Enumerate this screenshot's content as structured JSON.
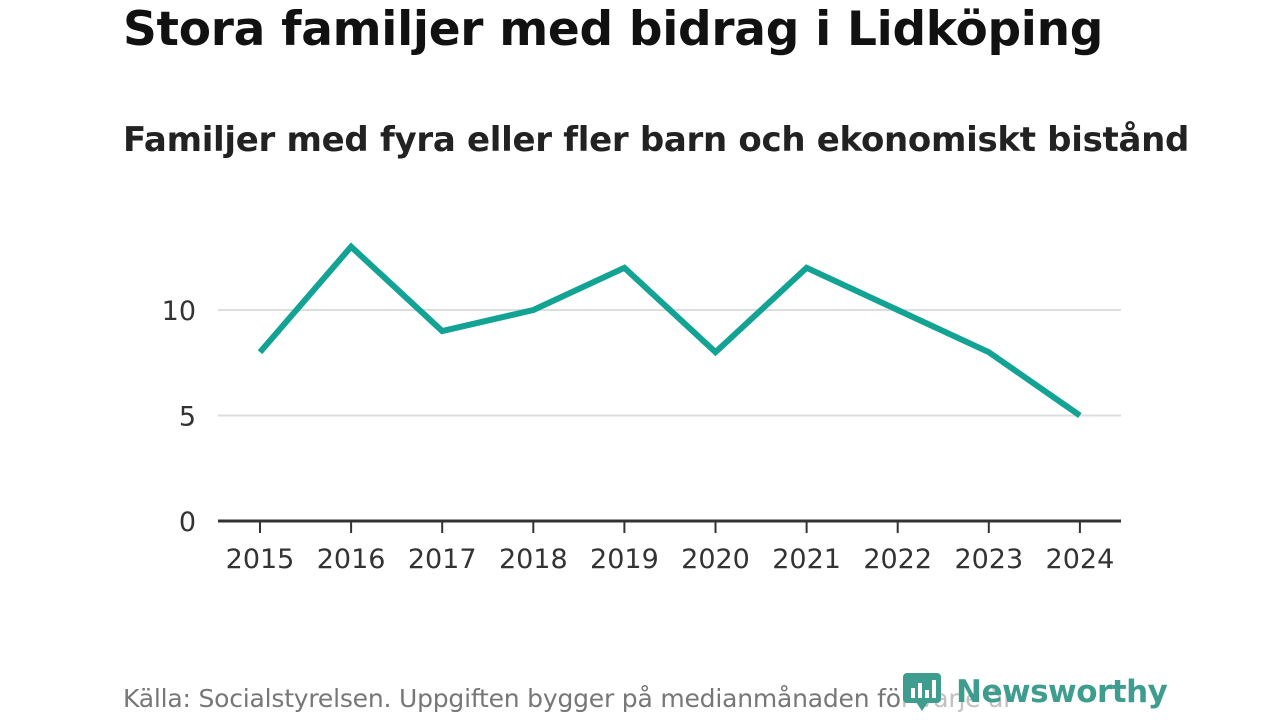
{
  "title": "Stora familjer med bidrag i Lidköping",
  "subtitle": "Familjer med fyra eller fler barn och ekonomiskt bistånd",
  "source": "Källa: Socialstyrelsen. Uppgiften bygger på medianmånaden för varje år",
  "brand": {
    "name": "Newsworthy",
    "logo_icon": "newsworthy-logo-icon",
    "color": "#3e9d8f"
  },
  "colors": {
    "line": "#13a394",
    "grid": "#dddddd",
    "axis": "#333333",
    "tick_text": "#333333"
  },
  "chart_data": {
    "type": "line",
    "title": "Stora familjer med bidrag i Lidköping",
    "subtitle": "Familjer med fyra eller fler barn och ekonomiskt bistånd",
    "xlabel": "",
    "ylabel": "",
    "categories": [
      "2015",
      "2016",
      "2017",
      "2018",
      "2019",
      "2020",
      "2021",
      "2022",
      "2023",
      "2024"
    ],
    "series": [
      {
        "name": "Familjer med fyra eller fler barn och ekonomiskt bistånd",
        "values": [
          8,
          13,
          9,
          10,
          12,
          8,
          12,
          10,
          8,
          5
        ]
      }
    ],
    "ylim": [
      0,
      13
    ],
    "yticks": [
      0,
      5,
      10
    ],
    "grid": true,
    "legend": "none"
  }
}
